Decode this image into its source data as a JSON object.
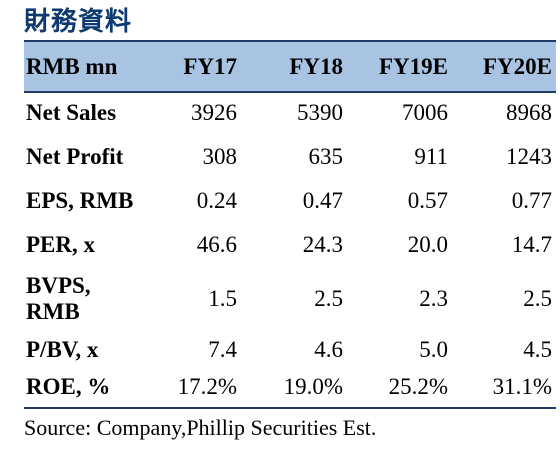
{
  "title": "財務資料",
  "columns": [
    "RMB mn",
    "FY17",
    "FY18",
    "FY19E",
    "FY20E"
  ],
  "rows": [
    {
      "label": "Net Sales",
      "values": [
        "3926",
        "5390",
        "7006",
        "8968"
      ]
    },
    {
      "label": "Net Profit",
      "values": [
        "308",
        "635",
        "911",
        "1243"
      ]
    },
    {
      "label": "EPS, RMB",
      "values": [
        "0.24",
        "0.47",
        "0.57",
        "0.77"
      ]
    },
    {
      "label": "PER, x",
      "values": [
        "46.6",
        "24.3",
        "20.0",
        "14.7"
      ]
    },
    {
      "label": "BVPS, RMB",
      "values": [
        "1.5",
        "2.5",
        "2.3",
        "2.5"
      ]
    },
    {
      "label": "P/BV, x",
      "values": [
        "7.4",
        "4.6",
        "5.0",
        "4.5"
      ]
    },
    {
      "label": "ROE, %",
      "values": [
        "17.2%",
        "19.0%",
        "25.2%",
        "31.1%"
      ]
    }
  ],
  "source": "Source: Company,Phillip Securities Est."
}
